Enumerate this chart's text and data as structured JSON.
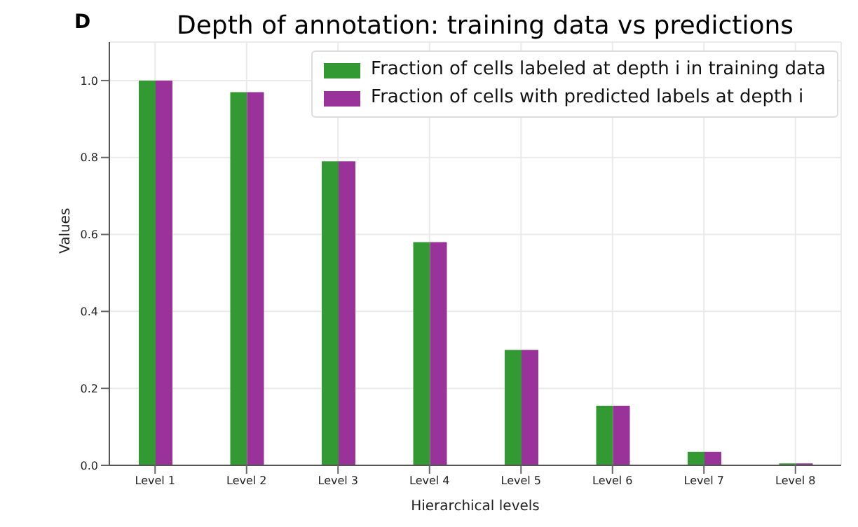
{
  "chart_data": {
    "type": "bar",
    "title": "Depth of annotation: training data vs predictions",
    "xlabel": "Hierarchical levels",
    "ylabel": "Values",
    "annotations": [
      "D"
    ],
    "categories": [
      "Level 1",
      "Level 2",
      "Level 3",
      "Level 4",
      "Level 5",
      "Level 6",
      "Level 7",
      "Level 8"
    ],
    "series": [
      {
        "name": "Fraction of cells labeled at depth i in training data",
        "color": "#339933",
        "values": [
          1.0,
          0.97,
          0.79,
          0.58,
          0.3,
          0.155,
          0.035,
          0.005
        ]
      },
      {
        "name": "Fraction of cells with predicted labels at depth i",
        "color": "#993399",
        "values": [
          1.0,
          0.97,
          0.79,
          0.58,
          0.3,
          0.155,
          0.035,
          0.005
        ]
      }
    ],
    "ylim": [
      0,
      1.1
    ],
    "yticks": [
      {
        "value": 0,
        "label": "0.0"
      },
      0.2,
      0.4,
      0.6,
      0.8,
      {
        "value": 1,
        "label": "1.0"
      }
    ],
    "grid": true,
    "legend": "top right"
  }
}
